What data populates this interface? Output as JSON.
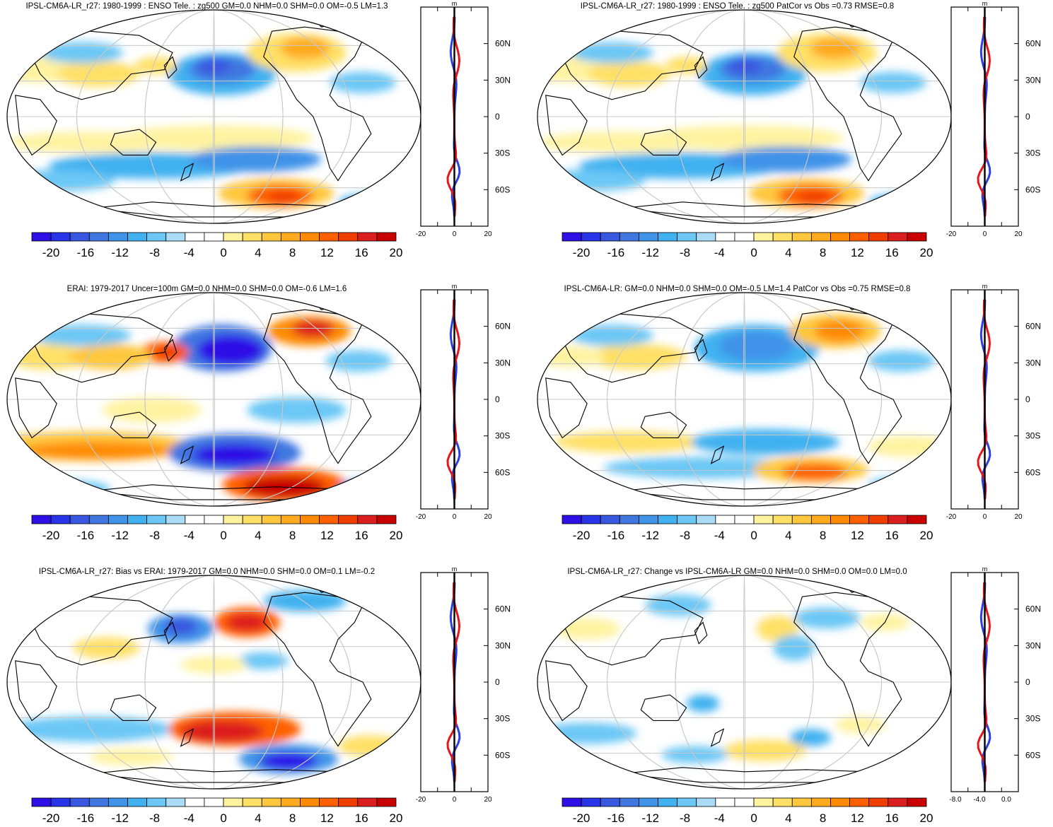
{
  "colorbar": {
    "colors": [
      "#2d0fe6",
      "#2633e6",
      "#3a57e0",
      "#3f76e0",
      "#3f93e8",
      "#3fb1f0",
      "#6cc7f5",
      "#a9dcf7",
      "#ffffff",
      "#ffffff",
      "#fff3a1",
      "#ffe066",
      "#ffc73d",
      "#ffaa1f",
      "#ff8a00",
      "#ff6100",
      "#f03d00",
      "#dc1e1e",
      "#c80000"
    ],
    "labels": [
      "-20",
      "-16",
      "-12",
      "-8",
      "-4",
      "0",
      "4",
      "8",
      "12",
      "16",
      "20"
    ]
  },
  "palette": {
    "blue": "#2b3fe6",
    "red": "#e8161b",
    "black": "#000000"
  },
  "lat_labels": [
    "60N",
    "30N",
    "0",
    "30S",
    "60S"
  ],
  "panels": [
    {
      "title": "IPSL-CM6A-LR_r27: 1980-1999 : ENSO Tele. : zg500 GM=0.0 NHM=0.0 SHM=0.0 OM=-0.5 LM=1.3",
      "unit": "m",
      "profile_ticks": [
        "-20",
        "0",
        "20"
      ],
      "pattern": "model"
    },
    {
      "title": "IPSL-CM6A-LR_r27: 1980-1999 : ENSO Tele. : zg500 PatCor vs Obs =0.73 RMSE=0.8",
      "unit": "m",
      "profile_ticks": [
        "-20",
        "0",
        "20"
      ],
      "pattern": "model"
    },
    {
      "title": "ERAI: 1979-2017 Uncer=100m GM=0.0 NHM=0.0 SHM=0.0 OM=-0.6 LM=1.6",
      "unit": "m",
      "profile_ticks": [
        "-20",
        "0",
        "20"
      ],
      "pattern": "obs"
    },
    {
      "title": "IPSL-CM6A-LR: GM=0.0 NHM=0.0 SHM=0.0 OM=-0.5 LM=1.4 PatCor vs Obs =0.75 RMSE=0.8",
      "unit": "m",
      "profile_ticks": [
        "-20",
        "0",
        "20"
      ],
      "pattern": "model2"
    },
    {
      "title": "IPSL-CM6A-LR_r27: Bias vs ERAI: 1979-2017 GM=0.0 NHM=0.0 SHM=0.0 OM=0.1 LM=-0.2",
      "unit": "m",
      "profile_ticks": [
        "-20",
        "0",
        "20"
      ],
      "pattern": "bias"
    },
    {
      "title": "IPSL-CM6A-LR_r27: Change vs IPSL-CM6A-LR GM=0.0 NHM=0.0 SHM=0.0 OM=0.0 LM=0.0",
      "unit": "m",
      "profile_ticks": [
        "-8.0",
        "-4.0",
        "0.0"
      ],
      "pattern": "change"
    }
  ]
}
